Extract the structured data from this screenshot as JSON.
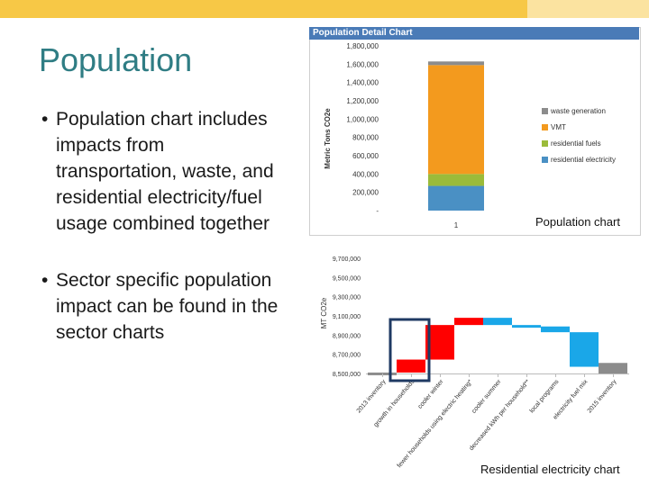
{
  "slide": {
    "title": "Population",
    "bullets": [
      "Population chart includes impacts from transportation, waste, and residential electricity/fuel usage combined together",
      "Sector specific population impact can be found in the sector charts"
    ],
    "bullet_symbol": "•"
  },
  "chart_data": [
    {
      "type": "bar",
      "title": "Population Detail Chart",
      "ylabel": "Metric Tons CO2e",
      "categories": [
        "1"
      ],
      "ylim": [
        0,
        1800000
      ],
      "yticks": [
        "-",
        "200,000",
        "400,000",
        "600,000",
        "800,000",
        "1,000,000",
        "1,200,000",
        "1,400,000",
        "1,600,000",
        "1,800,000"
      ],
      "series": [
        {
          "name": "residential electricity",
          "values": [
            270000
          ],
          "color": "#4a90c4"
        },
        {
          "name": "residential fuels",
          "values": [
            130000
          ],
          "color": "#9bbb3a"
        },
        {
          "name": "VMT",
          "values": [
            1190000
          ],
          "color": "#f39a1e"
        },
        {
          "name": "waste generation",
          "values": [
            40000
          ],
          "color": "#8c8c8c"
        }
      ],
      "legend_order": [
        "waste generation",
        "VMT",
        "residential fuels",
        "residential electricity"
      ],
      "legend_position": "right",
      "caption": "Population chart"
    },
    {
      "type": "waterfall",
      "ylabel": "MT CO2e",
      "ylim": [
        8500000,
        9700000
      ],
      "yticks": [
        "8,500,000",
        "8,700,000",
        "8,900,000",
        "9,100,000",
        "9,300,000",
        "9,500,000",
        "9,700,000"
      ],
      "categories": [
        "2013 inventory",
        "growth in households",
        "cooler winter",
        "fewer households using electric heating*",
        "cooler summer",
        "decreased kWh per household**",
        "local programs",
        "electricity fuel mix",
        "2015 inventory"
      ],
      "steps": [
        {
          "start": 8500000,
          "end": 8510000,
          "color": "#8c8c8c"
        },
        {
          "start": 8510000,
          "end": 8645000,
          "color": "#ff0000"
        },
        {
          "start": 8645000,
          "end": 9005000,
          "color": "#ff0000"
        },
        {
          "start": 9005000,
          "end": 9080000,
          "color": "#ff0000"
        },
        {
          "start": 9080000,
          "end": 9005000,
          "color": "#1aa7e8"
        },
        {
          "start": 9005000,
          "end": 8990000,
          "color": "#1aa7e8"
        },
        {
          "start": 8990000,
          "end": 8930000,
          "color": "#1aa7e8"
        },
        {
          "start": 8930000,
          "end": 8570000,
          "color": "#1aa7e8"
        },
        {
          "start": 8500000,
          "end": 8610000,
          "color": "#8c8c8c"
        }
      ],
      "highlighted_category": "growth in households",
      "caption": "Residential electricity chart"
    }
  ]
}
